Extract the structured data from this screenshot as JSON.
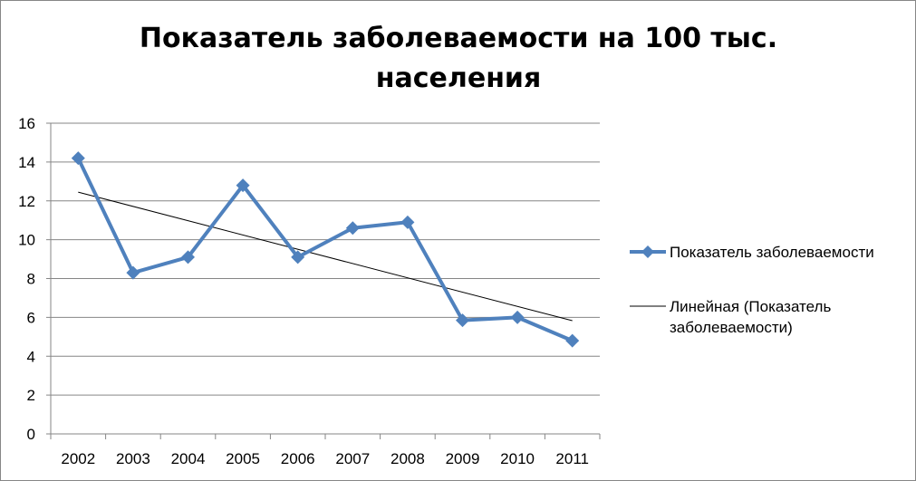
{
  "chart_data": {
    "type": "line",
    "title": "Показатель заболеваемости на 100 тыс. населения",
    "categories": [
      "2002",
      "2003",
      "2004",
      "2005",
      "2006",
      "2007",
      "2008",
      "2009",
      "2010",
      "2011"
    ],
    "series": [
      {
        "name": "Показатель заболеваемости",
        "values": [
          14.2,
          8.3,
          9.1,
          12.8,
          9.1,
          10.6,
          10.9,
          5.85,
          6.0,
          4.8
        ],
        "color": "#4F81BD",
        "marker": "diamond"
      }
    ],
    "trendline": {
      "name": "Линейная (Показатель заболеваемости)",
      "type": "linear",
      "start": 12.45,
      "end": 5.83,
      "color": "#000000"
    },
    "y_ticks": [
      "0",
      "2",
      "4",
      "6",
      "8",
      "10",
      "12",
      "14",
      "16"
    ],
    "ylim": [
      0,
      16
    ],
    "grid": "horizontal",
    "legend_position": "right",
    "xlabel": "",
    "ylabel": ""
  }
}
